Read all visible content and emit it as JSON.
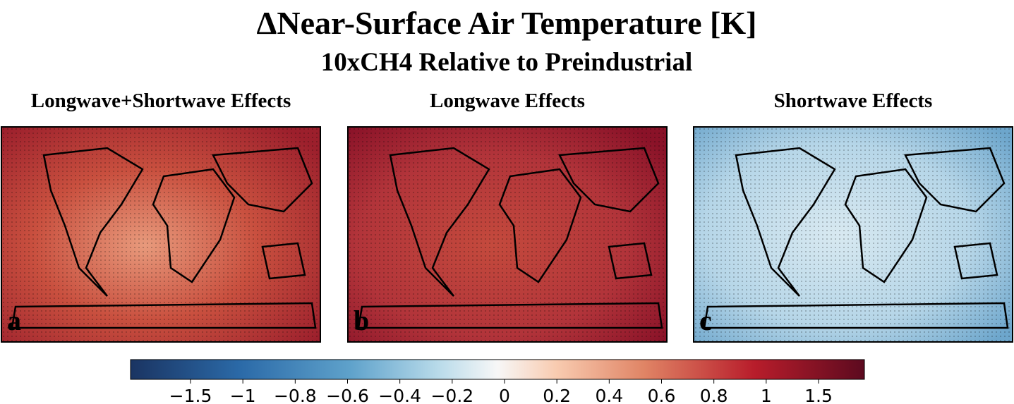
{
  "header": {
    "title": "ΔNear-Surface Air Temperature [K]",
    "subtitle": "10xCH4 Relative to Preindustrial"
  },
  "panels": [
    {
      "title": "Longwave+Shortwave Effects",
      "letter": "a"
    },
    {
      "title": "Longwave Effects",
      "letter": "b"
    },
    {
      "title": "Shortwave Effects",
      "letter": "c"
    }
  ],
  "colorbar": {
    "ticks": [
      {
        "value": -1.5,
        "label": "−1.5"
      },
      {
        "value": -1,
        "label": "−1"
      },
      {
        "value": -0.8,
        "label": "−0.8"
      },
      {
        "value": -0.6,
        "label": "−0.6"
      },
      {
        "value": -0.4,
        "label": "−0.4"
      },
      {
        "value": -0.2,
        "label": "−0.2"
      },
      0,
      0.2,
      0.4,
      0.6,
      0.8,
      1,
      1.5
    ]
  }
}
